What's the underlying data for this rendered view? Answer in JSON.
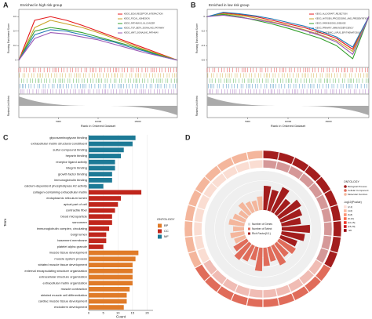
{
  "panels": [
    "A",
    "B",
    "C",
    "D"
  ],
  "chart_data": [
    {
      "type": "gsea",
      "title": "Enriched in high risk group",
      "ylabel": "Running Enrichment Score",
      "ylabel2": "Ranked List Metric",
      "xlabel": "Rank in Ordered Dataset",
      "x": [
        0,
        2000,
        4000,
        6000,
        8000,
        10000,
        12000,
        14000,
        16000,
        18000,
        20000
      ],
      "xlim": [
        0,
        20000
      ],
      "xticks": [
        5000,
        10000,
        15000
      ],
      "ylim": [
        -0.1,
        0.7
      ],
      "yticks": [
        0,
        0.2,
        0.4,
        0.6
      ],
      "series": [
        {
          "name": "KEGG_ECM_RECEPTOR_INTERACTION",
          "color": "#e41a1c",
          "values": [
            0,
            0.55,
            0.6,
            0.55,
            0.48,
            0.4,
            0.32,
            0.24,
            0.16,
            0.08,
            0
          ]
        },
        {
          "name": "KEGG_FOCAL_ADHESION",
          "color": "#c9a227",
          "values": [
            0,
            0.45,
            0.55,
            0.5,
            0.45,
            0.38,
            0.3,
            0.22,
            0.14,
            0.07,
            0
          ]
        },
        {
          "name": "KEGG_PATHWAYS_IN_CANCER",
          "color": "#33a02c",
          "values": [
            0,
            0.4,
            0.45,
            0.42,
            0.38,
            0.32,
            0.26,
            0.2,
            0.13,
            0.06,
            0
          ]
        },
        {
          "name": "KEGG_TGF_BETA_SIGNALING_PATHWAY",
          "color": "#1f78b4",
          "values": [
            0,
            0.35,
            0.42,
            0.4,
            0.35,
            0.3,
            0.25,
            0.18,
            0.12,
            0.05,
            0
          ]
        },
        {
          "name": "KEGG_WNT_SIGNALING_PATHWAY",
          "color": "#9b59b6",
          "values": [
            0,
            0.3,
            0.38,
            0.36,
            0.32,
            0.28,
            0.22,
            0.16,
            0.1,
            0.05,
            0
          ]
        }
      ]
    },
    {
      "type": "gsea",
      "title": "Enriched in low risk group",
      "ylabel": "Running Enrichment Score",
      "ylabel2": "Ranked List Metric",
      "xlabel": "Rank in Ordered Dataset",
      "x": [
        0,
        2000,
        4000,
        6000,
        8000,
        10000,
        12000,
        14000,
        16000,
        18000,
        20000
      ],
      "xlim": [
        0,
        20000
      ],
      "xticks": [
        5000,
        10000,
        15000
      ],
      "ylim": [
        -0.7,
        0.1
      ],
      "yticks": [
        -0.6,
        -0.4,
        -0.2,
        0
      ],
      "series": [
        {
          "name": "KEGG_ALLOGRAFT_REJECTION",
          "color": "#e41a1c",
          "values": [
            0,
            0.05,
            0.03,
            0,
            -0.05,
            -0.1,
            -0.15,
            -0.22,
            -0.3,
            -0.45,
            0
          ]
        },
        {
          "name": "KEGG_ANTIGEN_PROCESSING_AND_PRESENTATION",
          "color": "#c9a227",
          "values": [
            0,
            0.04,
            0.02,
            -0.02,
            -0.07,
            -0.12,
            -0.18,
            -0.25,
            -0.33,
            -0.48,
            0
          ]
        },
        {
          "name": "KEGG_PARKINSONS_DISEASE",
          "color": "#33a02c",
          "values": [
            0,
            0.03,
            0,
            -0.05,
            -0.1,
            -0.16,
            -0.23,
            -0.3,
            -0.4,
            -0.58,
            0
          ]
        },
        {
          "name": "KEGG_PRIMARY_IMMUNODEFICIENCY",
          "color": "#1f78b4",
          "values": [
            0,
            0.06,
            0.04,
            0.01,
            -0.03,
            -0.08,
            -0.13,
            -0.2,
            -0.28,
            -0.42,
            0
          ]
        },
        {
          "name": "KEGG_SYSTEMIC_LUPUS_ERYTHEMATOSUS",
          "color": "#9b59b6",
          "values": [
            0,
            0.02,
            -0.01,
            -0.04,
            -0.08,
            -0.13,
            -0.19,
            -0.26,
            -0.35,
            -0.52,
            0
          ]
        }
      ]
    },
    {
      "type": "bar_h",
      "xlabel": "Count",
      "ylabel": "Term",
      "legend_title": "ONTOLOGY",
      "xlim": [
        0,
        22
      ],
      "xticks": [
        0,
        5,
        10,
        15,
        20
      ],
      "categories": [
        "glycosaminoglycan binding",
        "extracellular matrix structural constituent",
        "sulfur compound binding",
        "heparin binding",
        "receptor ligand activity",
        "integrin binding",
        "growth factor binding",
        "immunoglobulin binding",
        "calcium-dependent phospholipase A2 activity",
        "collagen-containing extracellular matrix",
        "endoplasmic reticulum lumen",
        "apical part of cell",
        "contractile fiber",
        "blood microparticle",
        "sarcomere",
        "immunoglobulin complex, circulating",
        "Golgi lumen",
        "basement membrane",
        "platelet alpha granule",
        "muscle tissue development",
        "muscle system process",
        "striated muscle tissue development",
        "external encapsulating structure organization",
        "extracellular structure organization",
        "extracellular matrix organization",
        "muscle contraction",
        "striated muscle cell differentiation",
        "cardiac muscle tissue development",
        "endoderm development"
      ],
      "series": [
        {
          "name": "BP",
          "color": "#e07b28",
          "values": [
            null,
            null,
            null,
            null,
            null,
            null,
            null,
            null,
            null,
            null,
            null,
            null,
            null,
            null,
            null,
            null,
            null,
            null,
            null,
            17,
            16,
            15,
            15,
            15,
            15,
            14,
            13,
            13,
            12
          ]
        },
        {
          "name": "CC",
          "color": "#c0261c",
          "values": [
            null,
            null,
            null,
            null,
            null,
            null,
            null,
            null,
            null,
            18,
            11,
            10,
            9,
            8,
            8,
            7,
            6,
            6,
            5,
            null,
            null,
            null,
            null,
            null,
            null,
            null,
            null,
            null,
            null
          ]
        },
        {
          "name": "MF",
          "color": "#1d7a96",
          "values": [
            16,
            15,
            12,
            11,
            9,
            9,
            8,
            8,
            5,
            null,
            null,
            null,
            null,
            null,
            null,
            null,
            null,
            null,
            null,
            null,
            null,
            null,
            null,
            null,
            null,
            null,
            null,
            null,
            null
          ]
        }
      ]
    },
    {
      "type": "circos",
      "legend_title": "ONTOLOGY",
      "ylim": [
        0,
        1
      ],
      "center_labels": [
        "Number of Genes",
        "Number of Select",
        "Rich Factor(0-1)"
      ],
      "series": [
        {
          "name": "Biological Process",
          "color": "#a31d1d",
          "values": [
            0.62,
            0.55,
            0.7,
            0.48,
            0.66,
            0.58,
            0.5,
            0.72,
            0.6,
            0.45
          ]
        },
        {
          "name": "Cellular Component",
          "color": "#e06c5a",
          "values": [
            0.5,
            0.42,
            0.55,
            0.38,
            0.47,
            0.6,
            0.35,
            0.44,
            0.52,
            0.4
          ]
        },
        {
          "name": "Molecular Function",
          "color": "#f4b69c",
          "values": [
            0.3,
            0.36,
            0.28,
            0.4,
            0.33,
            0.25,
            0.38,
            0.3,
            0.27,
            0.35
          ]
        }
      ],
      "pvalue_legend": {
        "title": "-log10(Pvalue)",
        "labels": [
          "(2,4]",
          "(4,6]",
          "(6,8]",
          "(8,10]",
          "(10,15]",
          "(15,20]",
          ">20"
        ],
        "colors": [
          "#fde0d9",
          "#fcbba1",
          "#fc9272",
          "#fb6a4a",
          "#ef3b2c",
          "#cb181d",
          "#99000d"
        ]
      }
    }
  ]
}
